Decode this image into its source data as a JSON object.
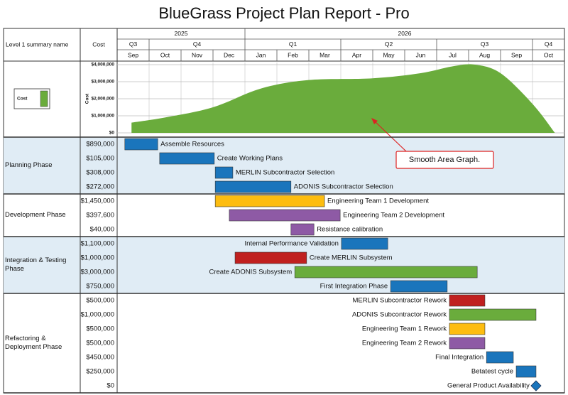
{
  "title": "BlueGrass Project Plan Report - Pro",
  "header": {
    "summary_column": "Level 1 summary name",
    "cost_column": "Cost"
  },
  "timeline": {
    "years": [
      "2025",
      "2025",
      "2025",
      "2025",
      "2026",
      "2026",
      "2026",
      "2026",
      "2026",
      "2026",
      "2026",
      "2026",
      "2026",
      "2026"
    ],
    "quarters": [
      "Q3",
      "Q4",
      "Q4",
      "Q4",
      "Q1",
      "Q1",
      "Q1",
      "Q2",
      "Q2",
      "Q2",
      "Q3",
      "Q3",
      "Q3",
      "Q4"
    ],
    "months": [
      "Sep",
      "Oct",
      "Nov",
      "Dec",
      "Jan",
      "Feb",
      "Mar",
      "Apr",
      "May",
      "Jun",
      "Jul",
      "Aug",
      "Sep",
      "Oct"
    ]
  },
  "chart_data": [
    {
      "type": "area",
      "smooth": true,
      "y_label": "Cost",
      "annotation": "Smooth Area Graph.",
      "xlim": [
        0,
        14
      ],
      "ylim": [
        0,
        4000000
      ],
      "yticks": [
        {
          "value": 0,
          "label": "$0"
        },
        {
          "value": 1000000,
          "label": "$1,000,000"
        },
        {
          "value": 2000000,
          "label": "$2,000,000"
        },
        {
          "value": 3000000,
          "label": "$3,000,000"
        },
        {
          "value": 4000000,
          "label": "$4,000,000"
        }
      ],
      "grid": true,
      "series": [
        {
          "name": "Cost",
          "color": "#6aac3c",
          "x": [
            0.45,
            1.5,
            3,
            4.5,
            6,
            8,
            9.5,
            10.5,
            11.2,
            12,
            13,
            13.7
          ],
          "values": [
            600000,
            900000,
            1500000,
            2600000,
            3100000,
            3200000,
            3500000,
            3900000,
            4000000,
            3500000,
            1700000,
            0
          ]
        }
      ]
    },
    {
      "type": "gantt",
      "xlim": [
        0,
        14
      ],
      "phases": [
        {
          "name": "Planning Phase",
          "tasks": [
            {
              "name": "Assemble Resources",
              "cost": "$890,000",
              "start": 0.24,
              "end": 1.27,
              "color": "#1a75bc"
            },
            {
              "name": "Create Working Plans",
              "cost": "$105,000",
              "start": 1.33,
              "end": 3.04,
              "color": "#1a75bc"
            },
            {
              "name": "MERLIN Subcontractor Selection",
              "cost": "$308,000",
              "start": 3.07,
              "end": 3.62,
              "color": "#1a75bc"
            },
            {
              "name": "ADONIS Subcontractor Selection",
              "cost": "$272,000",
              "start": 3.07,
              "end": 5.44,
              "color": "#1a75bc"
            }
          ]
        },
        {
          "name": "Development Phase",
          "tasks": [
            {
              "name": "Engineering Team 1 Development",
              "cost": "$1,450,000",
              "start": 3.07,
              "end": 6.49,
              "color": "#fdbd10"
            },
            {
              "name": "Engineering Team 2 Development",
              "cost": "$397,600",
              "start": 3.51,
              "end": 6.98,
              "color": "#8e5aa5"
            },
            {
              "name": "Resistance calibration",
              "cost": "$40,000",
              "start": 5.44,
              "end": 6.16,
              "color": "#8e5aa5"
            }
          ]
        },
        {
          "name": "Integration & Testing Phase",
          "tasks": [
            {
              "name": "Internal Performance Validation",
              "cost": "$1,100,000",
              "start": 7.02,
              "end": 8.47,
              "color": "#1a75bc"
            },
            {
              "name": "Create MERLIN Subsystem",
              "cost": "$1,000,000",
              "start": 3.69,
              "end": 5.93,
              "color": "#c0201f"
            },
            {
              "name": "Create ADONIS Subsystem",
              "cost": "$3,000,000",
              "start": 5.56,
              "end": 11.27,
              "color": "#6aac3c"
            },
            {
              "name": "First Integration Phase",
              "cost": "$750,000",
              "start": 8.56,
              "end": 10.33,
              "color": "#1a75bc"
            }
          ]
        },
        {
          "name": "Refactoring & Deployment Phase",
          "tasks": [
            {
              "name": "MERLIN Subcontractor Rework",
              "cost": "$500,000",
              "start": 10.4,
              "end": 11.51,
              "color": "#c0201f"
            },
            {
              "name": "ADONIS Subcontractor Rework",
              "cost": "$1,000,000",
              "start": 10.4,
              "end": 13.11,
              "color": "#6aac3c"
            },
            {
              "name": "Engineering Team 1 Rework",
              "cost": "$500,000",
              "start": 10.4,
              "end": 11.51,
              "color": "#fdbd10"
            },
            {
              "name": "Engineering Team 2 Rework",
              "cost": "$500,000",
              "start": 10.4,
              "end": 11.51,
              "color": "#8e5aa5"
            },
            {
              "name": "Final Integration",
              "cost": "$450,000",
              "start": 11.56,
              "end": 12.4,
              "color": "#1a75bc"
            },
            {
              "name": "Betatest cycle",
              "cost": "$250,000",
              "start": 12.49,
              "end": 13.11,
              "color": "#1a75bc"
            },
            {
              "name": "General Product Availability",
              "cost": "$0",
              "start": 13.11,
              "end": 13.11,
              "color": "#1a75bc"
            }
          ]
        }
      ]
    }
  ]
}
